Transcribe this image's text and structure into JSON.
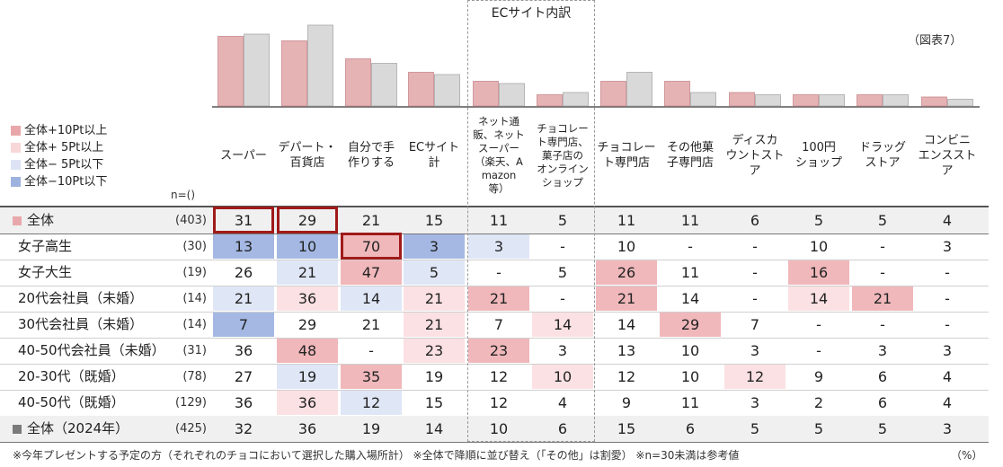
{
  "chart_data": {
    "type": "table",
    "figure_label": "（図表7）",
    "ec_group_title": "ECサイト内訳",
    "n_header": "n=()",
    "legend": [
      {
        "label": "全体+10Pt以上",
        "color": "#e8a8ab"
      },
      {
        "label": "全体+ 5Pt以上",
        "color": "#f8d7d9"
      },
      {
        "label": "全体− 5Pt以下",
        "color": "#dde3f4"
      },
      {
        "label": "全体−10Pt以下",
        "color": "#9eb2e0"
      }
    ],
    "columns": [
      "スーパー",
      "デパート・\n百貨店",
      "自分で手\n作りする",
      "ECサイト\n計",
      "ネット通\n販、ネット\nスーパー\n（楽天、A\nmazon\n等）",
      "チョコレー\nト専門店、\n菓子店の\nオンライン\nショップ",
      "チョコレー\nト専門店",
      "その他菓\n子専門店",
      "ディスカ\nウントスト\nア",
      "100円\nショップ",
      "ドラッグ\nストア",
      "コンビニ\nエンススト\nア"
    ],
    "bar_series": [
      {
        "values": [
          31,
          29,
          21,
          15,
          11,
          5,
          11,
          11,
          6,
          5,
          5,
          4
        ],
        "color": "#e6b3b5"
      },
      {
        "values": [
          32,
          36,
          19,
          14,
          10,
          6,
          15,
          6,
          5,
          5,
          5,
          3
        ],
        "color": "#d9d9d9"
      }
    ],
    "rows": [
      {
        "label": "全体",
        "n": "(403)",
        "values": [
          "31",
          "29",
          "21",
          "15",
          "11",
          "5",
          "11",
          "11",
          "6",
          "5",
          "5",
          "4"
        ],
        "shade": [
          "",
          "",
          "",
          "",
          "",
          "",
          "",
          "",
          "",
          "",
          "",
          ""
        ],
        "marker_color": "#e8a8ab",
        "kind": "top"
      },
      {
        "label": "女子高生",
        "n": "(30)",
        "values": [
          "13",
          "10",
          "70",
          "3",
          "3",
          "-",
          "10",
          "-",
          "-",
          "10",
          "-",
          "3"
        ],
        "shade": [
          "d2",
          "d2",
          "u2",
          "d2",
          "d1",
          "",
          "",
          "",
          "",
          "",
          "",
          ""
        ]
      },
      {
        "label": "女子大生",
        "n": "(19)",
        "values": [
          "26",
          "21",
          "47",
          "5",
          "-",
          "5",
          "26",
          "11",
          "-",
          "16",
          "-",
          "-"
        ],
        "shade": [
          "",
          "d1",
          "u2",
          "d1",
          "",
          "",
          "u2",
          "",
          "",
          "u2",
          "",
          ""
        ]
      },
      {
        "label": "20代会社員（未婚）",
        "n": "(14)",
        "values": [
          "21",
          "36",
          "14",
          "21",
          "21",
          "-",
          "21",
          "14",
          "-",
          "14",
          "21",
          "-"
        ],
        "shade": [
          "d1",
          "u1",
          "d1",
          "u1",
          "u2",
          "",
          "u2",
          "",
          "",
          "u1",
          "u2",
          ""
        ]
      },
      {
        "label": "30代会社員（未婚）",
        "n": "(14)",
        "values": [
          "7",
          "29",
          "21",
          "21",
          "7",
          "14",
          "14",
          "29",
          "7",
          "-",
          "-",
          "-"
        ],
        "shade": [
          "d2",
          "",
          "",
          "u1",
          "",
          "u1",
          "",
          "u2",
          "",
          "",
          "",
          ""
        ]
      },
      {
        "label": "40-50代会社員（未婚）",
        "n": "(31)",
        "values": [
          "36",
          "48",
          "-",
          "23",
          "23",
          "3",
          "13",
          "10",
          "3",
          "-",
          "3",
          "3"
        ],
        "shade": [
          "",
          "u2",
          "",
          "u1",
          "u2",
          "",
          "",
          "",
          "",
          "",
          "",
          ""
        ]
      },
      {
        "label": "20-30代（既婚）",
        "n": "(78)",
        "values": [
          "27",
          "19",
          "35",
          "19",
          "12",
          "10",
          "12",
          "10",
          "12",
          "9",
          "6",
          "4"
        ],
        "shade": [
          "",
          "d1",
          "u2",
          "",
          "",
          "u1",
          "",
          "",
          "u1",
          "",
          "",
          ""
        ]
      },
      {
        "label": "40-50代（既婚）",
        "n": "(129)",
        "values": [
          "36",
          "36",
          "12",
          "15",
          "12",
          "4",
          "9",
          "11",
          "3",
          "2",
          "6",
          "4"
        ],
        "shade": [
          "",
          "u1",
          "d1",
          "",
          "",
          "",
          "",
          "",
          "",
          "",
          "",
          ""
        ]
      },
      {
        "label": "全体（2024年）",
        "n": "(425)",
        "values": [
          "32",
          "36",
          "19",
          "14",
          "10",
          "6",
          "15",
          "6",
          "5",
          "5",
          "5",
          "3"
        ],
        "shade": [
          "",
          "",
          "",
          "",
          "",
          "",
          "",
          "",
          "",
          "",
          "",
          ""
        ],
        "marker_color": "#7a7a7a",
        "kind": "bottom"
      }
    ],
    "highlight_boxes": [
      [
        0,
        0
      ],
      [
        0,
        1
      ],
      [
        1,
        2
      ]
    ],
    "footnote": "※今年プレゼントする予定の方（それぞれのチョコにおいて選択した購入場所計） ※全体で降順に並び替え（「その他」は割愛） ※n=30未満は参考値",
    "unit": "（%）"
  }
}
